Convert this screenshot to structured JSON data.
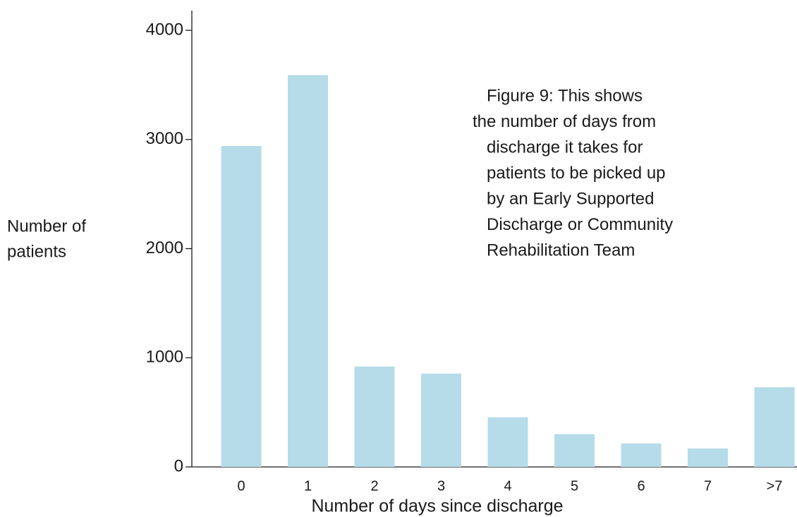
{
  "chart_data": {
    "type": "bar",
    "annotation": [
      "Figure 9: This shows",
      "the number of days from",
      "discharge it takes for",
      "patients to be picked up",
      "by an Early Supported",
      "Discharge or Community",
      "Rehabilitation Team"
    ],
    "x_label": "Number of days since discharge",
    "y_label": [
      "Number of",
      "patients"
    ],
    "categories": [
      "0",
      "1",
      "2",
      "3",
      "4",
      "5",
      "6",
      "7",
      ">7"
    ],
    "values": [
      2940,
      3590,
      920,
      855,
      455,
      300,
      215,
      170,
      730
    ],
    "color": "#b5dce8",
    "ylim": [
      0,
      4000
    ],
    "yticks": [
      0,
      1000,
      2000,
      3000,
      4000
    ]
  }
}
